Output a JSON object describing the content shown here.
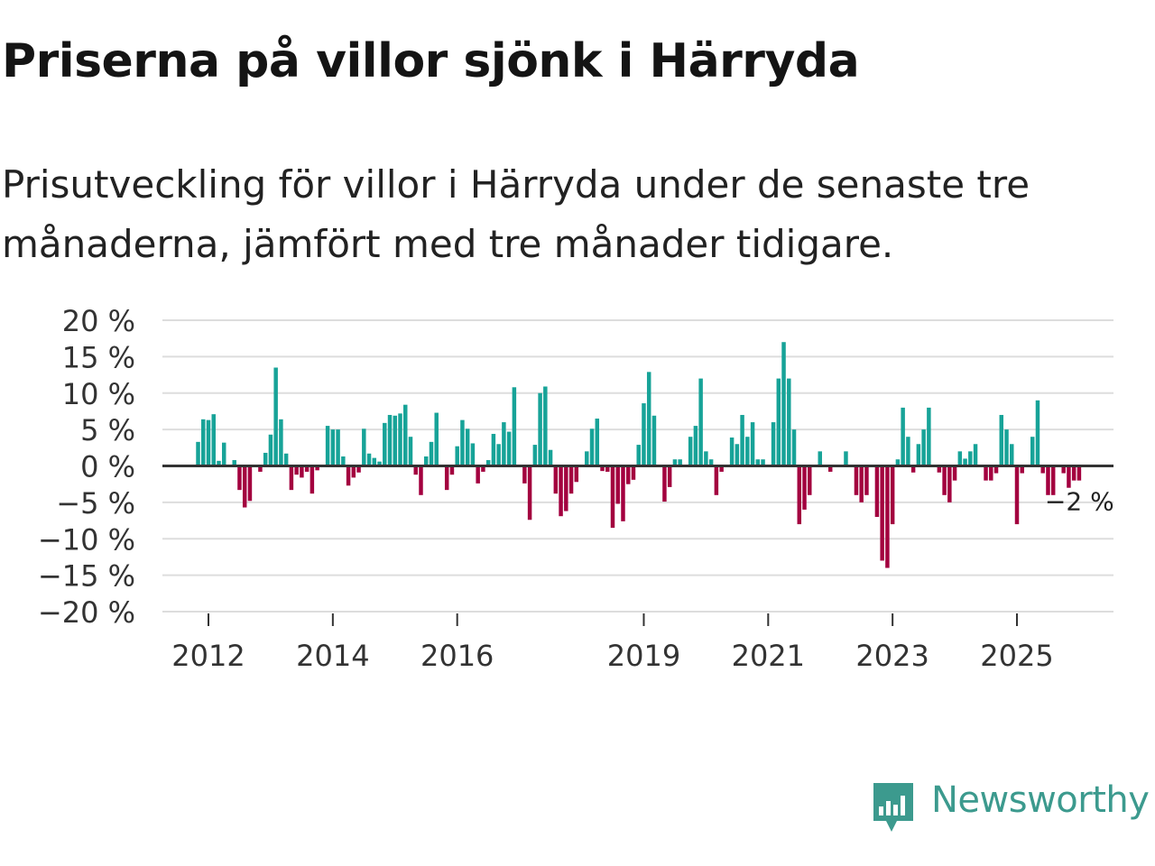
{
  "title": "Priserna på villor sjönk i Härryda",
  "subtitle": "Prisutveckling för villor i Härryda under de senaste tre månaderna, jämfört med tre månader tidigare.",
  "logo": {
    "text": "Newsworthy",
    "icon": "newsworthy-chart-icon"
  },
  "colors": {
    "positive": "#17a398",
    "negative": "#a3003f",
    "zero_line": "#333333",
    "grid": "#dddddd"
  },
  "chart_data": {
    "type": "bar",
    "ylim": [
      -20,
      20
    ],
    "y_ticks": [
      20,
      15,
      10,
      5,
      0,
      -5,
      -10,
      -15,
      -20
    ],
    "y_tick_labels": [
      "20 %",
      "15 %",
      "10 %",
      "5 %",
      "0 %",
      "−5 %",
      "−10 %",
      "−15 %",
      "−20 %"
    ],
    "x_tick_labels": [
      {
        "year": 2012,
        "label": "2012"
      },
      {
        "year": 2014,
        "label": "2014"
      },
      {
        "year": 2016,
        "label": "2016"
      },
      {
        "year": 2019,
        "label": "2019"
      },
      {
        "year": 2021,
        "label": "2021"
      },
      {
        "year": 2023,
        "label": "2023"
      },
      {
        "year": 2025,
        "label": "2025"
      }
    ],
    "start": "2011-11",
    "end": "2025-09",
    "series": [
      {
        "name": "Prisutveckling",
        "monthly_values": [
          3.3,
          6.4,
          6.3,
          7.1,
          0.7,
          3.2,
          0.1,
          0.8,
          -3.3,
          -5.7,
          -4.8,
          0.1,
          -0.8,
          1.8,
          4.3,
          13.5,
          6.4,
          1.7,
          -3.3,
          -1.2,
          -1.6,
          -0.8,
          -3.8,
          -0.6,
          0.1,
          5.5,
          5.0,
          5.0,
          1.3,
          -2.7,
          -1.6,
          -0.9,
          5.1,
          1.7,
          1.1,
          0.6,
          5.9,
          7.0,
          6.9,
          7.2,
          8.4,
          4.0,
          -1.2,
          -4.0,
          1.3,
          3.3,
          7.3,
          0.1,
          -3.3,
          -1.2,
          2.7,
          6.3,
          5.1,
          3.1,
          -2.4,
          -0.8,
          0.8,
          4.4,
          3.0,
          6.0,
          4.7,
          10.8,
          0.1,
          -2.4,
          -7.4,
          2.9,
          10.0,
          10.9,
          2.2,
          -3.8,
          -6.9,
          -6.2,
          -3.8,
          -2.2,
          0.1,
          2.0,
          5.1,
          6.5,
          -0.7,
          -0.8,
          -8.5,
          -5.2,
          -7.6,
          -2.5,
          -1.9,
          2.9,
          8.6,
          12.9,
          6.9,
          0.1,
          -4.9,
          -2.9,
          0.9,
          0.9,
          0.1,
          4.0,
          5.5,
          12.0,
          2.0,
          0.9,
          -4.0,
          -0.8,
          0.1,
          3.9,
          3.0,
          7.0,
          4.0,
          6.0,
          0.9,
          0.9,
          0.1,
          6.0,
          12.0,
          17.0,
          12.0,
          5.0,
          -8.0,
          -6.0,
          -4.0,
          0.1,
          2.0,
          0.1,
          -0.8,
          0.1,
          0.1,
          2.0,
          0.1,
          -4.0,
          -5.0,
          -4.0,
          0.1,
          -7.0,
          -13.0,
          -14.0,
          -8.0,
          0.9,
          8.0,
          4.0,
          -0.9,
          3.0,
          5.0,
          8.0,
          0.1,
          -0.9,
          -4.0,
          -5.0,
          -2.0,
          2.0,
          1.0,
          2.0,
          3.0,
          0.1,
          -2.0,
          -2.0,
          -1.0,
          7.0,
          5.0,
          3.0,
          -8.0,
          -1.0,
          0.1,
          4.0,
          9.0,
          -1.0,
          -4.0,
          -4.0,
          0.1,
          -1.0,
          -3.0,
          -2.0,
          -2.0
        ]
      }
    ],
    "annotation": {
      "label": "−2 %",
      "value": -2
    }
  }
}
